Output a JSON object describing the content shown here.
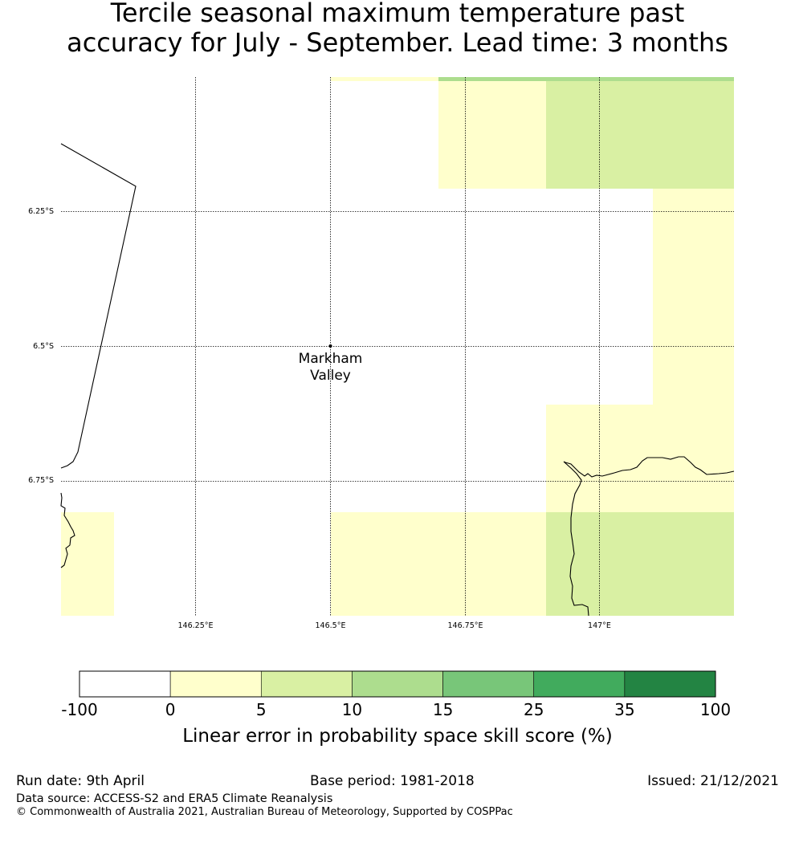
{
  "title": {
    "line1": "Tercile seasonal maximum temperature past",
    "line2": "accuracy for July - September. Lead time: 3 months"
  },
  "map": {
    "lat_labels": [
      "6.25°S",
      "6.5°S",
      "6.75°S"
    ],
    "lon_labels": [
      "146.25°E",
      "146.5°E",
      "146.75°E",
      "147°E"
    ],
    "place": {
      "name_line1": "Markham",
      "name_line2": "Valley"
    },
    "colors": {
      "bin_0_5": "#ffffcc",
      "bin_5_10": "#d9f0a3",
      "bin_10_15": "#addd8e",
      "grid": "#000000",
      "coast": "#000000"
    }
  },
  "colorbar": {
    "ticks": [
      "-100",
      "0",
      "5",
      "10",
      "15",
      "25",
      "35",
      "100"
    ],
    "colors": [
      "#ffffff",
      "#ffffcc",
      "#d9f0a3",
      "#addd8e",
      "#78c679",
      "#41ab5d",
      "#238443"
    ],
    "label": "Linear error in probability space skill score (%)"
  },
  "footer": {
    "run_date": "Run date: 9th April",
    "base_period": "Base period: 1981-2018",
    "issued": "Issued: 21/12/2021",
    "data_source": "Data source: ACCESS-S2 and ERA5 Climate Reanalysis",
    "copyright": "© Commonwealth of Australia 2021, Australian Bureau of Meteorology, Supported by COSPPac"
  }
}
